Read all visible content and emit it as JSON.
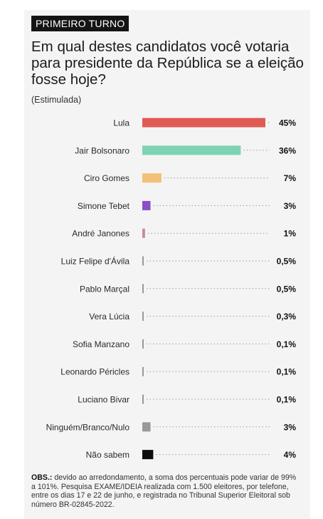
{
  "header": {
    "tag": "PRIMEIRO TURNO",
    "title": "Em qual destes candidatos você votaria para presidente da República se a eleição fosse hoje?",
    "subtitle": "(Estimulada)"
  },
  "chart_data": {
    "type": "bar",
    "orientation": "horizontal",
    "categories": [
      "Lula",
      "Jair Bolsonaro",
      "Ciro Gomes",
      "Simone Tebet",
      "André Janones",
      "Luiz Felipe d'Ávila",
      "Pablo Marçal",
      "Vera Lúcia",
      "Sofia Manzano",
      "Leonardo Péricles",
      "Luciano Bivar",
      "Ninguém/Branco/Nulo",
      "Não sabem"
    ],
    "values": [
      45,
      36,
      7,
      3,
      1,
      0.5,
      0.5,
      0.3,
      0.1,
      0.1,
      0.1,
      3,
      4
    ],
    "value_labels": [
      "45%",
      "36%",
      "7%",
      "3%",
      "1%",
      "0,5%",
      "0,5%",
      "0,3%",
      "0,1%",
      "0,1%",
      "0,1%",
      "3%",
      "4%"
    ],
    "colors": [
      "#e05a55",
      "#7dd3b3",
      "#f2c179",
      "#8d4fc4",
      "#c98a99",
      "#999999",
      "#999999",
      "#999999",
      "#999999",
      "#999999",
      "#999999",
      "#999999",
      "#0d0d0d"
    ],
    "xlim": [
      0,
      45
    ],
    "grid": false
  },
  "footnote": {
    "label": "OBS.:",
    "text": "devido ao arredondamento, a soma dos percentuais pode variar de 99% a 101%. Pesquisa EXAME/IDEIA realizada com 1.500 eleitores, por telefone, entre os dias 17 e 22 de junho, e registrada no Tribunal Superior Eleitoral sob número BR-02845-2022."
  }
}
